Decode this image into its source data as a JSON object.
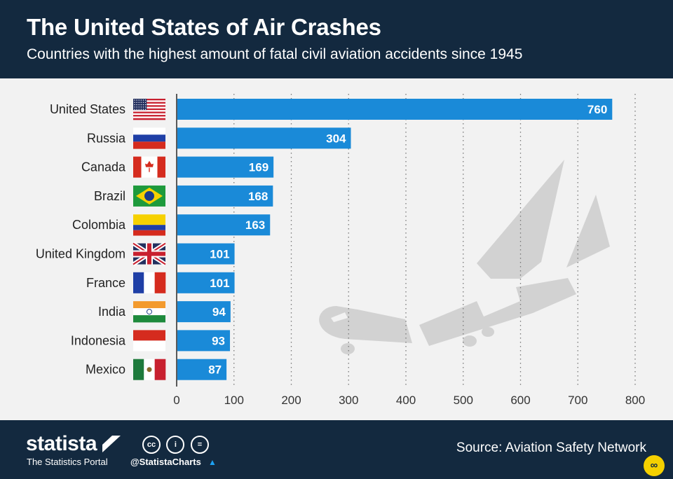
{
  "header": {
    "title": "The United States of Air Crashes",
    "subtitle": "Countries with the highest amount of fatal civil aviation accidents since 1945"
  },
  "chart_data": {
    "type": "bar",
    "orientation": "horizontal",
    "title": "The United States of Air Crashes",
    "subtitle": "Countries with the highest amount of fatal civil aviation accidents since 1945",
    "categories": [
      "United States",
      "Russia",
      "Canada",
      "Brazil",
      "Colombia",
      "United Kingdom",
      "France",
      "India",
      "Indonesia",
      "Mexico"
    ],
    "values": [
      760,
      304,
      169,
      168,
      163,
      101,
      101,
      94,
      93,
      87
    ],
    "xlim": [
      0,
      800
    ],
    "xticks": [
      "0",
      "100",
      "200",
      "300",
      "400",
      "500",
      "600",
      "700",
      "800"
    ],
    "grid": "vertical-dotted",
    "bar_color": "#1a8ad8",
    "flag_icons": [
      "us-flag-icon",
      "russia-flag-icon",
      "canada-flag-icon",
      "brazil-flag-icon",
      "colombia-flag-icon",
      "uk-flag-icon",
      "france-flag-icon",
      "india-flag-icon",
      "indonesia-flag-icon",
      "mexico-flag-icon"
    ]
  },
  "footer": {
    "brand": "statista",
    "brand_tagline": "The Statistics Portal",
    "handle": "@StatistaCharts",
    "source": "Source: Aviation Safety Network"
  }
}
